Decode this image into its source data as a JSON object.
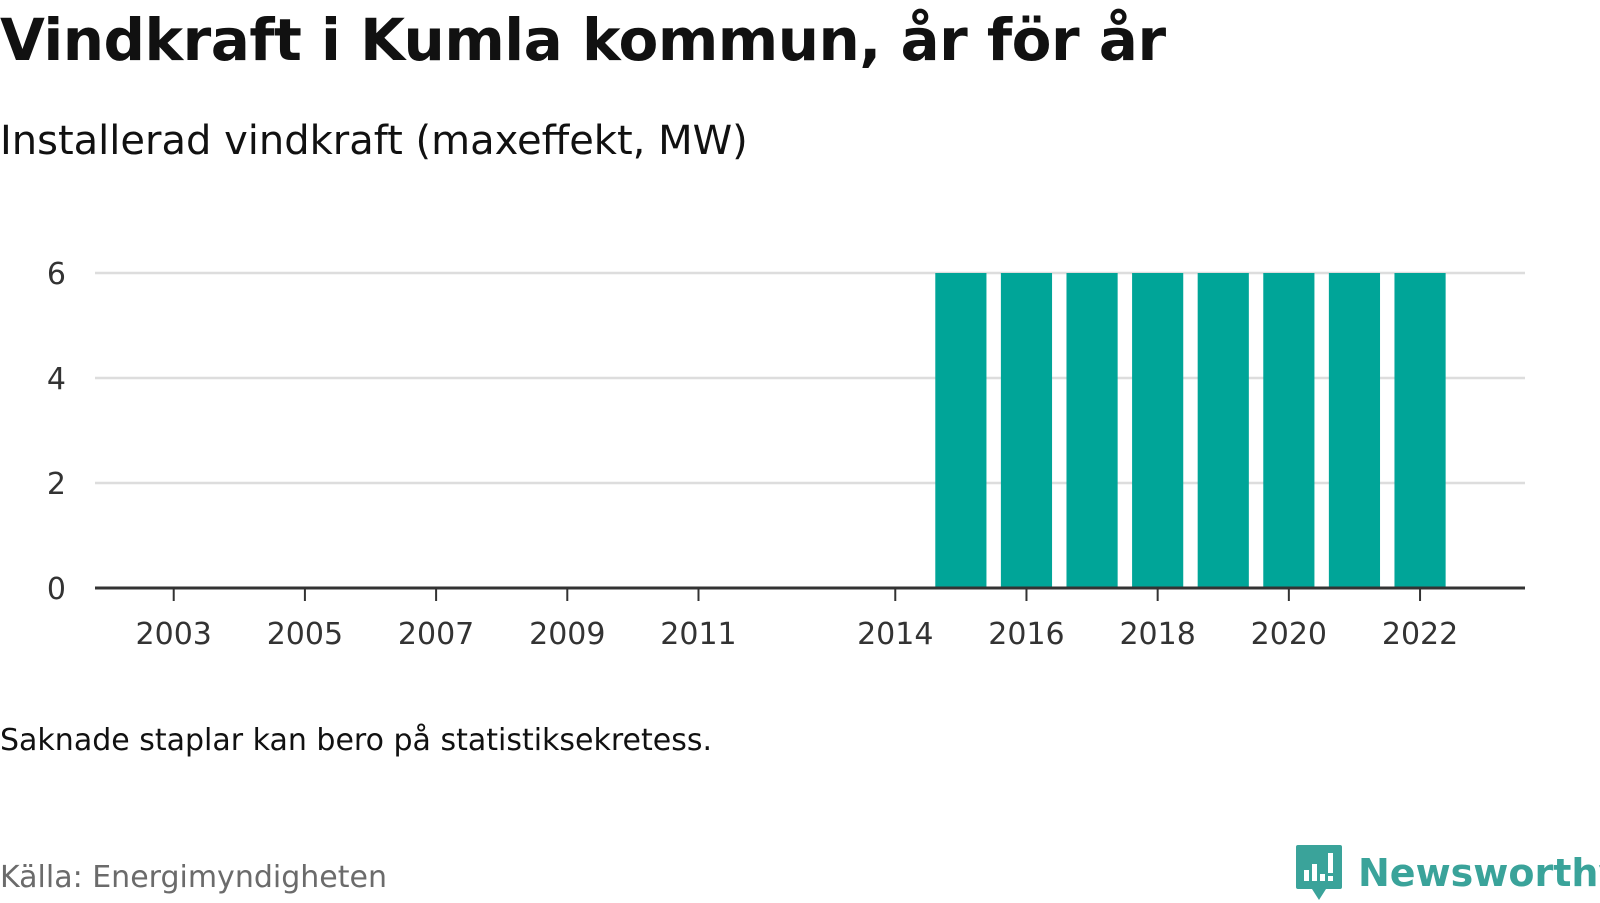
{
  "header": {
    "title": "Vindkraft i Kumla kommun, år för år",
    "subtitle": "Installerad vindkraft (maxeffekt, MW)"
  },
  "footer": {
    "note": "Saknade staplar kan bero på statistiksekretess.",
    "source": "Källa: Energimyndigheten",
    "brand": "Newsworthy"
  },
  "colors": {
    "bar": "#00a598",
    "brand": "#3aa39a",
    "grid": "#dddddd",
    "axis": "#333333"
  },
  "icons": {
    "brand_logo": "bar-chart-speech-bubble-icon"
  },
  "chart_data": {
    "type": "bar",
    "title": "Vindkraft i Kumla kommun, år för år",
    "subtitle": "Installerad vindkraft (maxeffekt, MW)",
    "xlabel": "",
    "ylabel": "",
    "x_range": [
      2001.8,
      2023.6
    ],
    "ylim": [
      0,
      6
    ],
    "yticks": [
      0,
      2,
      4,
      6
    ],
    "xticks": [
      2003,
      2005,
      2007,
      2009,
      2011,
      2014,
      2016,
      2018,
      2020,
      2022
    ],
    "grid": true,
    "legend": "none",
    "categories": [
      2015,
      2016,
      2017,
      2018,
      2019,
      2020,
      2021,
      2022
    ],
    "values": [
      6,
      6,
      6,
      6,
      6,
      6,
      6,
      6
    ]
  }
}
